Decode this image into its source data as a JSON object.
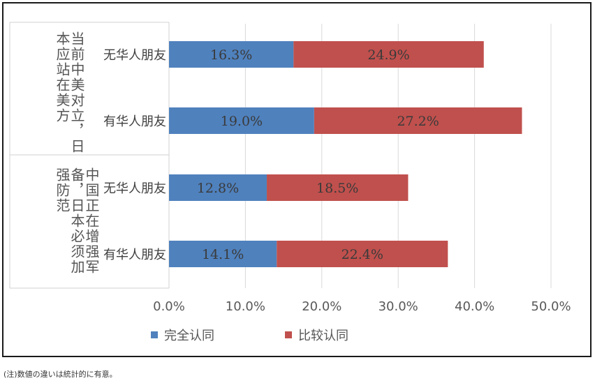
{
  "chart_data": {
    "type": "bar",
    "orientation": "horizontal",
    "stacked": true,
    "groups": [
      {
        "label": "当前中美对立，日本应站在美方",
        "categories": [
          "无华人朋友",
          "有华人朋友"
        ]
      },
      {
        "label": "中国正在增强军备，日本必须加强防范",
        "categories": [
          "无华人朋友",
          "有华人朋友"
        ]
      }
    ],
    "categories": [
      "无华人朋友",
      "有华人朋友",
      "无华人朋友",
      "有华人朋友"
    ],
    "series": [
      {
        "name": "完全认同",
        "color": "#4f81bd",
        "values": [
          16.3,
          19.0,
          12.8,
          14.1
        ],
        "labels": [
          "16.3%",
          "19.0%",
          "12.8%",
          "14.1%"
        ]
      },
      {
        "name": "比较认同",
        "color": "#c0504d",
        "values": [
          24.9,
          27.2,
          18.5,
          22.4
        ],
        "labels": [
          "24.9%",
          "27.2%",
          "18.5%",
          "22.4%"
        ]
      }
    ],
    "xlim": [
      0,
      50
    ],
    "xticks": [
      "0.0%",
      "10.0%",
      "20.0%",
      "30.0%",
      "40.0%",
      "50.0%"
    ],
    "grid": true,
    "legend_position": "bottom-left"
  },
  "footnote": "(注)数値の違いは統計的に有意。"
}
